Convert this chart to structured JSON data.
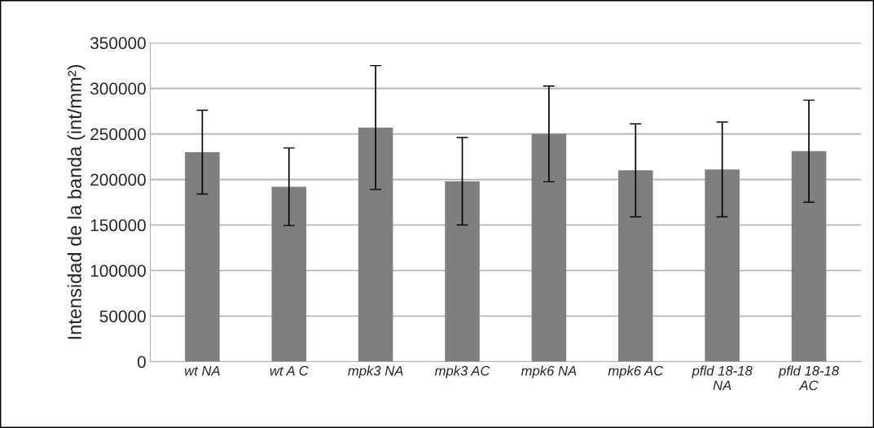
{
  "chart_data": {
    "type": "bar",
    "ylabel": "Intensidad de la banda (int/mm²)",
    "categories": [
      "wt NA",
      "wt A C",
      "mpk3 NA",
      "mpk3 AC",
      "mpk6 NA",
      "mpk6 AC",
      "pfld 18-18\nNA",
      "pfld 18-18\nAC"
    ],
    "values": [
      230000,
      192000,
      257000,
      198000,
      250000,
      210000,
      211000,
      231000
    ],
    "errors": [
      46000,
      42500,
      68000,
      48000,
      52500,
      51000,
      52000,
      56000
    ],
    "color": "#7f7f7f",
    "ylim": [
      0,
      350000
    ],
    "yticks": [
      0,
      50000,
      100000,
      150000,
      200000,
      250000,
      300000,
      350000
    ],
    "grid": "y"
  }
}
